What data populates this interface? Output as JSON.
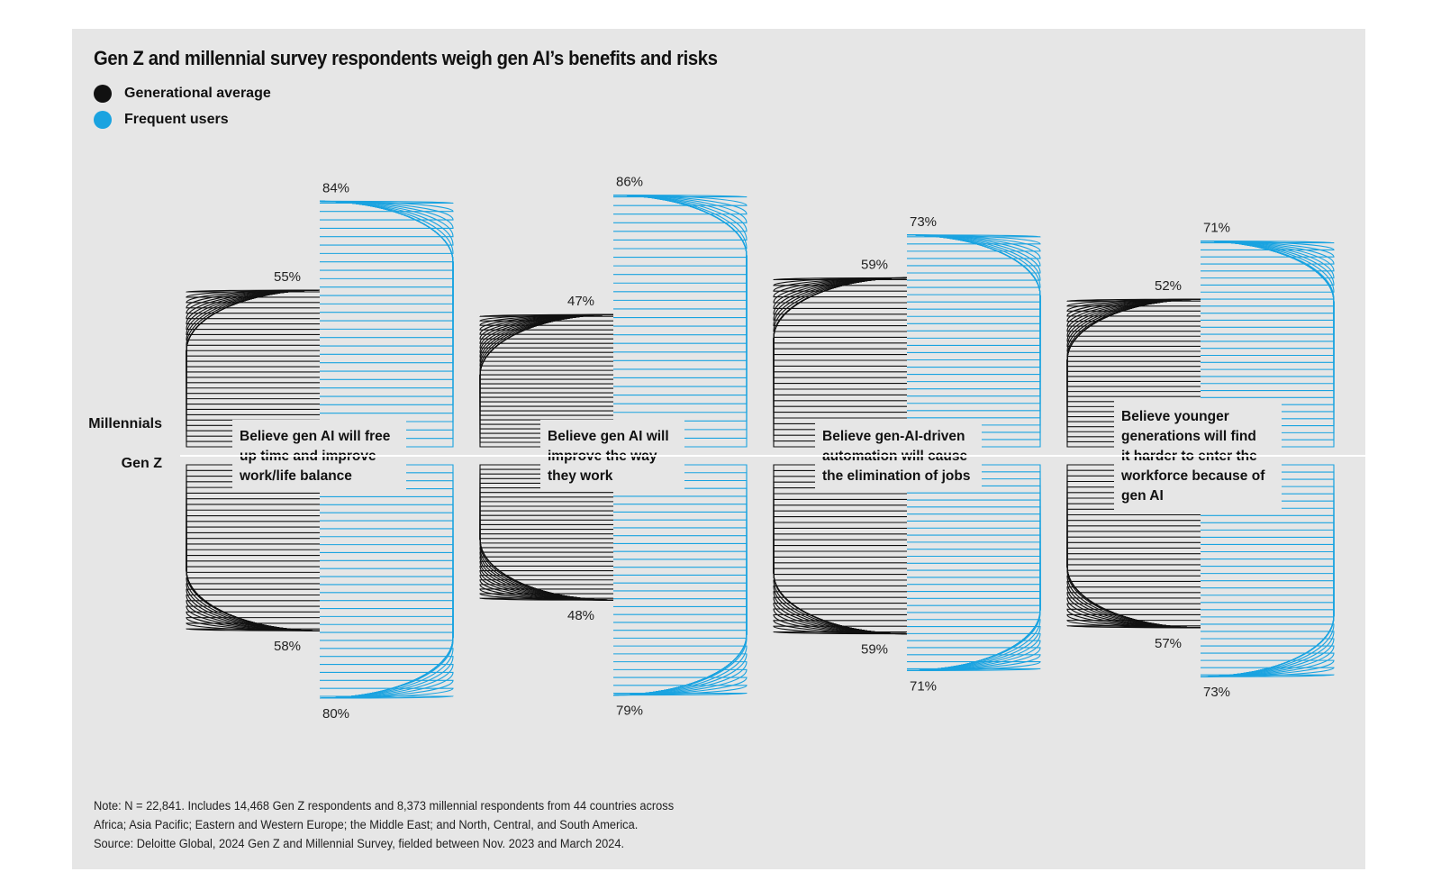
{
  "chart_data": {
    "type": "bar",
    "title": "Gen Z and millennial survey respondents weigh gen AI’s benefits and risks",
    "legend": [
      {
        "label": "Generational average",
        "color": "#111111"
      },
      {
        "label": "Frequent users",
        "color": "#1aa3e0"
      }
    ],
    "rows": [
      "Millennials",
      "Gen Z"
    ],
    "categories": [
      {
        "label_lines": [
          "Believe gen AI will free",
          "up time and improve",
          "work/life balance"
        ],
        "millennials": {
          "average": 55,
          "frequent": 84
        },
        "genz": {
          "average": 58,
          "frequent": 80
        }
      },
      {
        "label_lines": [
          "Believe gen AI will",
          "improve the way",
          "they work"
        ],
        "millennials": {
          "average": 47,
          "frequent": 86
        },
        "genz": {
          "average": 48,
          "frequent": 79
        }
      },
      {
        "label_lines": [
          "Believe gen-AI-driven",
          "automation will cause",
          "the elimination of jobs"
        ],
        "millennials": {
          "average": 59,
          "frequent": 73
        },
        "genz": {
          "average": 59,
          "frequent": 71
        }
      },
      {
        "label_lines": [
          "Believe younger",
          "generations will find",
          "it harder to enter the",
          "workforce because of",
          "gen AI"
        ],
        "millennials": {
          "average": 52,
          "frequent": 71
        },
        "genz": {
          "average": 57,
          "frequent": 73
        }
      }
    ],
    "unit": "%"
  },
  "note_lines": [
    "Note: N = 22,841. Includes 14,468 Gen Z respondents and 8,373 millennial respondents from 44 countries across",
    "Africa; Asia Pacific; Eastern and Western Europe; the Middle East; and North, Central, and South America.",
    "Source: Deloitte Global, 2024 Gen Z and Millennial Survey, fielded between Nov. 2023 and March 2024."
  ]
}
